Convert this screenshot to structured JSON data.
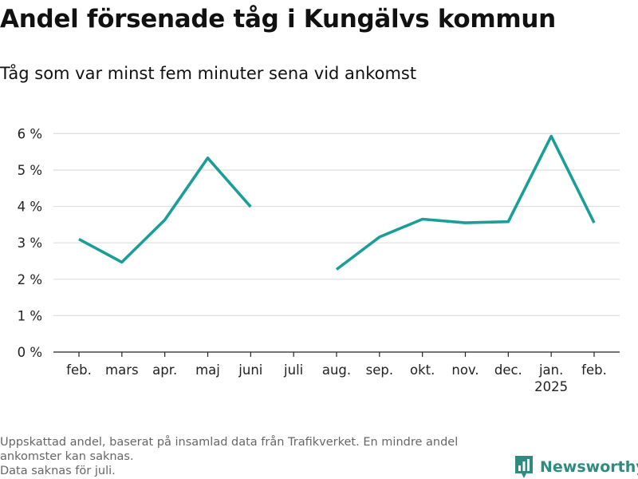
{
  "title": "Andel försenade tåg i Kungälvs kommun",
  "subtitle": "Tåg som var minst fem minuter sena vid ankomst",
  "footnote": {
    "line1": "Uppskattad andel, baserat på insamlad data från Trafikverket. En mindre andel",
    "line2": "ankomster kan saknas.",
    "line3": "Data saknas för juli."
  },
  "brand": {
    "name": "Newsworthy",
    "icon": "bar-chart-logo-icon",
    "color": "#2e8b7f"
  },
  "chart_data": {
    "type": "line",
    "categories": [
      "feb.",
      "mars",
      "apr.",
      "maj",
      "juni",
      "juli",
      "aug.",
      "sep.",
      "okt.",
      "nov.",
      "dec.",
      "jan.",
      "feb."
    ],
    "category_sublabels": [
      "",
      "",
      "",
      "",
      "",
      "",
      "",
      "",
      "",
      "",
      "",
      "2025",
      ""
    ],
    "series": [
      {
        "values": [
          3.1,
          2.47,
          3.63,
          5.33,
          3.99,
          null,
          2.27,
          3.16,
          3.65,
          3.55,
          3.58,
          5.93,
          3.55
        ],
        "color": "#1a9e96"
      }
    ],
    "yticks": [
      0,
      1,
      2,
      3,
      4,
      5,
      6
    ],
    "ytick_labels": [
      "0 %",
      "1 %",
      "2 %",
      "3 %",
      "4 %",
      "5 %",
      "6 %"
    ],
    "ylim": [
      0,
      6.6
    ],
    "xlabel": "",
    "ylabel": "",
    "grid": true,
    "legend": "none"
  }
}
